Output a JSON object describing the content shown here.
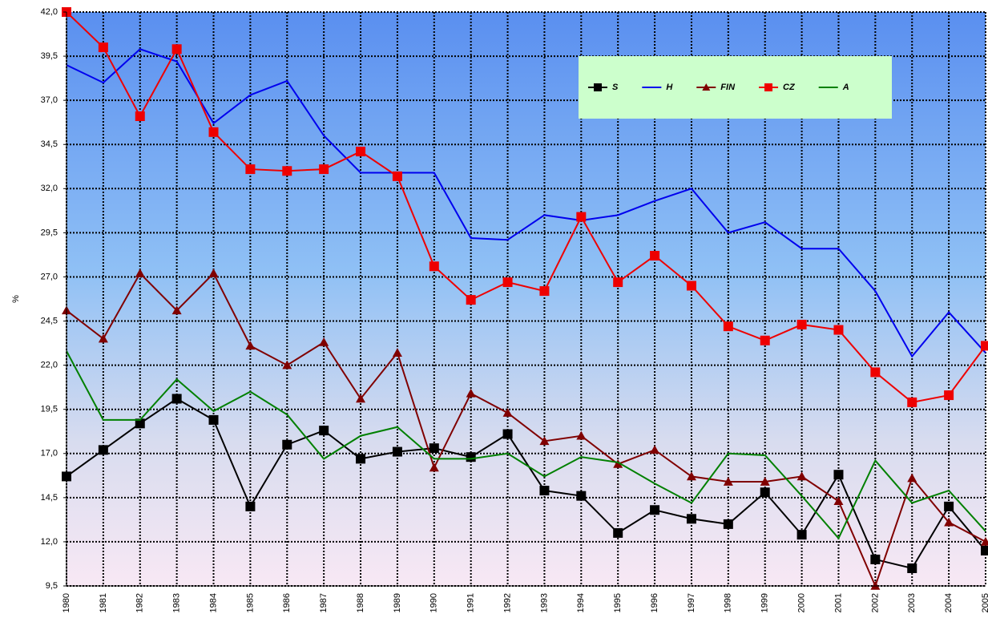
{
  "chart_data": {
    "type": "line",
    "y_label": "%",
    "categories": [
      "1980",
      "1981",
      "1982",
      "1983",
      "1984",
      "1985",
      "1986",
      "1987",
      "1988",
      "1989",
      "1990",
      "1991",
      "1992",
      "1993",
      "1994",
      "1995",
      "1996",
      "1997",
      "1998",
      "1999",
      "2000",
      "2001",
      "2002",
      "2003",
      "2004",
      "2005"
    ],
    "series": [
      {
        "name": "S",
        "color": "#000000",
        "marker": "square",
        "values": [
          15.7,
          17.2,
          18.7,
          20.1,
          18.9,
          14.0,
          17.5,
          18.3,
          16.7,
          17.1,
          17.3,
          16.8,
          18.1,
          14.9,
          14.6,
          12.5,
          13.8,
          13.3,
          13.0,
          14.8,
          12.4,
          15.8,
          11.0,
          10.5,
          14.0,
          11.5
        ]
      },
      {
        "name": "H",
        "color": "#0000ee",
        "marker": "none",
        "values": [
          39.0,
          38.0,
          39.9,
          39.2,
          35.7,
          37.3,
          38.1,
          35.0,
          32.9,
          32.9,
          32.9,
          29.2,
          29.1,
          30.5,
          30.2,
          30.5,
          31.3,
          32.0,
          29.5,
          30.1,
          28.6,
          28.6,
          26.2,
          22.5,
          25.0,
          22.7
        ]
      },
      {
        "name": "FIN",
        "color": "#800000",
        "marker": "triangle",
        "values": [
          25.1,
          23.5,
          27.2,
          25.1,
          27.2,
          23.1,
          22.0,
          23.3,
          20.1,
          22.7,
          16.2,
          20.4,
          19.3,
          17.7,
          18.0,
          16.4,
          17.2,
          15.7,
          15.4,
          15.4,
          15.7,
          14.3,
          9.5,
          15.6,
          13.1,
          12.0
        ]
      },
      {
        "name": "CZ",
        "color": "#ee0000",
        "marker": "square",
        "values": [
          42.0,
          40.0,
          36.1,
          39.9,
          35.2,
          33.1,
          33.0,
          33.1,
          34.1,
          32.7,
          27.6,
          25.7,
          26.7,
          26.2,
          30.4,
          26.7,
          28.2,
          26.5,
          24.2,
          23.4,
          24.3,
          24.0,
          21.6,
          19.9,
          20.3,
          23.1
        ]
      },
      {
        "name": "A",
        "color": "#008000",
        "marker": "none",
        "values": [
          22.8,
          18.9,
          18.9,
          21.2,
          19.4,
          20.5,
          19.2,
          16.7,
          18.0,
          18.5,
          16.7,
          16.7,
          17.0,
          15.7,
          16.8,
          16.5,
          15.3,
          14.2,
          17.0,
          16.9,
          14.6,
          12.2,
          16.6,
          14.2,
          14.9,
          12.6
        ]
      }
    ],
    "ylim": [
      9.5,
      42
    ],
    "yticks": [
      {
        "value": 9.5,
        "label": "9,5"
      },
      {
        "value": 12,
        "label": "12,0"
      },
      {
        "value": 14.5,
        "label": "14,5"
      },
      {
        "value": 17,
        "label": "17,0"
      },
      {
        "value": 19.5,
        "label": "19,5"
      },
      {
        "value": 22,
        "label": "22,0"
      },
      {
        "value": 24.5,
        "label": "24,5"
      },
      {
        "value": 27,
        "label": "27,0"
      },
      {
        "value": 29.5,
        "label": "29,5"
      },
      {
        "value": 32,
        "label": "32,0"
      },
      {
        "value": 34.5,
        "label": "34,5"
      },
      {
        "value": 37,
        "label": "37,0"
      },
      {
        "value": 39.5,
        "label": "39,5"
      },
      {
        "value": 42,
        "label": "42,0"
      }
    ],
    "grid": true,
    "legend": "top-right"
  }
}
